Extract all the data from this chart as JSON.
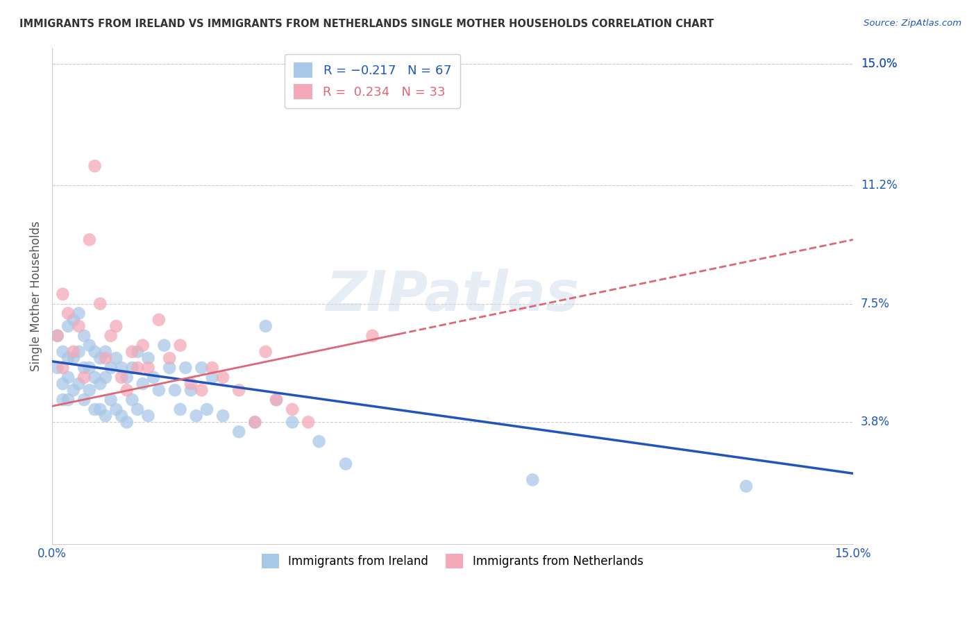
{
  "title": "IMMIGRANTS FROM IRELAND VS IMMIGRANTS FROM NETHERLANDS SINGLE MOTHER HOUSEHOLDS CORRELATION CHART",
  "source": "Source: ZipAtlas.com",
  "ylabel": "Single Mother Households",
  "ytick_labels": [
    "15.0%",
    "11.2%",
    "7.5%",
    "3.8%"
  ],
  "ytick_values": [
    0.15,
    0.112,
    0.075,
    0.038
  ],
  "xlim": [
    0.0,
    0.15
  ],
  "ylim": [
    0.0,
    0.15
  ],
  "watermark": "ZIPatlas",
  "ireland_color": "#a8c8e8",
  "netherlands_color": "#f4a8b8",
  "ireland_line_color": "#2255bb",
  "netherlands_line_color": "#dd6677",
  "ireland_R": -0.217,
  "ireland_N": 67,
  "netherlands_R": 0.234,
  "netherlands_N": 33,
  "ireland_scatter_x": [
    0.001,
    0.001,
    0.002,
    0.002,
    0.002,
    0.003,
    0.003,
    0.003,
    0.003,
    0.004,
    0.004,
    0.004,
    0.005,
    0.005,
    0.005,
    0.006,
    0.006,
    0.006,
    0.007,
    0.007,
    0.007,
    0.008,
    0.008,
    0.008,
    0.009,
    0.009,
    0.009,
    0.01,
    0.01,
    0.01,
    0.011,
    0.011,
    0.012,
    0.012,
    0.013,
    0.013,
    0.014,
    0.014,
    0.015,
    0.015,
    0.016,
    0.016,
    0.017,
    0.018,
    0.018,
    0.019,
    0.02,
    0.021,
    0.022,
    0.023,
    0.024,
    0.025,
    0.026,
    0.027,
    0.028,
    0.029,
    0.03,
    0.032,
    0.035,
    0.038,
    0.04,
    0.042,
    0.045,
    0.05,
    0.055,
    0.09,
    0.13
  ],
  "ireland_scatter_y": [
    0.065,
    0.055,
    0.06,
    0.05,
    0.045,
    0.068,
    0.058,
    0.052,
    0.045,
    0.07,
    0.058,
    0.048,
    0.072,
    0.06,
    0.05,
    0.065,
    0.055,
    0.045,
    0.062,
    0.055,
    0.048,
    0.06,
    0.052,
    0.042,
    0.058,
    0.05,
    0.042,
    0.06,
    0.052,
    0.04,
    0.055,
    0.045,
    0.058,
    0.042,
    0.055,
    0.04,
    0.052,
    0.038,
    0.055,
    0.045,
    0.06,
    0.042,
    0.05,
    0.058,
    0.04,
    0.052,
    0.048,
    0.062,
    0.055,
    0.048,
    0.042,
    0.055,
    0.048,
    0.04,
    0.055,
    0.042,
    0.052,
    0.04,
    0.035,
    0.038,
    0.068,
    0.045,
    0.038,
    0.032,
    0.025,
    0.02,
    0.018
  ],
  "netherlands_scatter_x": [
    0.001,
    0.002,
    0.002,
    0.003,
    0.004,
    0.005,
    0.006,
    0.007,
    0.008,
    0.009,
    0.01,
    0.011,
    0.012,
    0.013,
    0.014,
    0.015,
    0.016,
    0.017,
    0.018,
    0.02,
    0.022,
    0.024,
    0.026,
    0.028,
    0.03,
    0.032,
    0.035,
    0.038,
    0.04,
    0.042,
    0.045,
    0.048,
    0.06
  ],
  "netherlands_scatter_y": [
    0.065,
    0.078,
    0.055,
    0.072,
    0.06,
    0.068,
    0.052,
    0.095,
    0.118,
    0.075,
    0.058,
    0.065,
    0.068,
    0.052,
    0.048,
    0.06,
    0.055,
    0.062,
    0.055,
    0.07,
    0.058,
    0.062,
    0.05,
    0.048,
    0.055,
    0.052,
    0.048,
    0.038,
    0.06,
    0.045,
    0.042,
    0.038,
    0.065
  ],
  "ireland_line_x0": 0.0,
  "ireland_line_y0": 0.057,
  "ireland_line_x1": 0.15,
  "ireland_line_y1": 0.022,
  "netherlands_line_x0": 0.0,
  "netherlands_line_y0": 0.043,
  "netherlands_line_x1": 0.15,
  "netherlands_line_y1": 0.095
}
